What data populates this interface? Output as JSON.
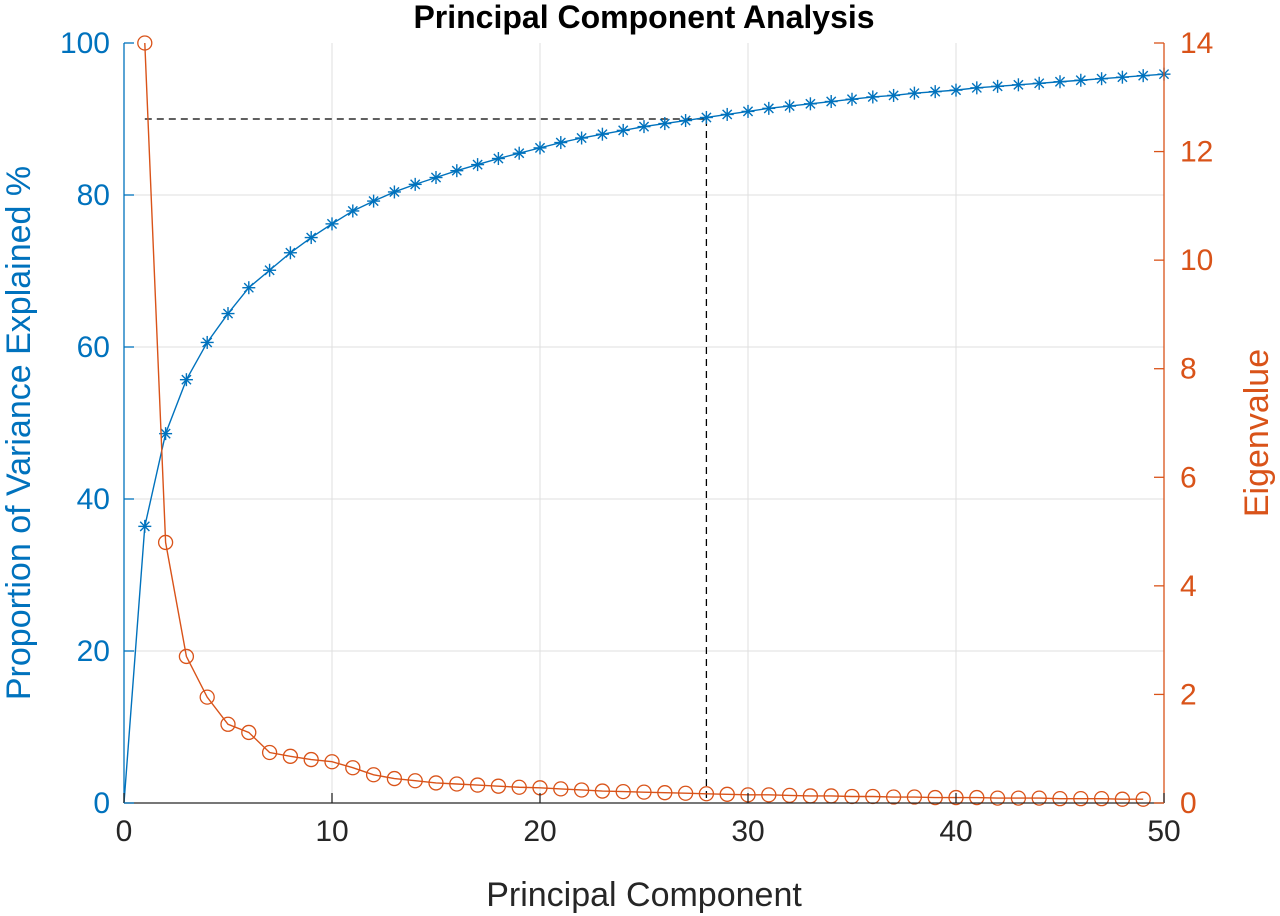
{
  "chart_data": {
    "type": "line",
    "title": "Principal Component Analysis",
    "xlabel": "Principal Component",
    "ylabel_left": "Proportion of Variance Explained %",
    "ylabel_right": "Eigenvalue",
    "xlim": [
      0,
      50
    ],
    "ylim_left": [
      0,
      100
    ],
    "ylim_right": [
      0,
      14
    ],
    "xticks": [
      0,
      10,
      20,
      30,
      40,
      50
    ],
    "yticks_left": [
      0,
      20,
      40,
      60,
      80,
      100
    ],
    "yticks_right": [
      0,
      2,
      4,
      6,
      8,
      10,
      12,
      14
    ],
    "grid": true,
    "colors": {
      "left": "#0072BD",
      "right": "#D95319",
      "reference": "#000000",
      "grid": "#DFDFDF"
    },
    "reference_lines": {
      "threshold_percent": 90,
      "component": 28
    },
    "series": [
      {
        "axis": "left",
        "marker": "asterisk",
        "x": [
          0,
          1,
          2,
          3,
          4,
          5,
          6,
          7,
          8,
          9,
          10,
          11,
          12,
          13,
          14,
          15,
          16,
          17,
          18,
          19,
          20,
          21,
          22,
          23,
          24,
          25,
          26,
          27,
          28,
          29,
          30,
          31,
          32,
          33,
          34,
          35,
          36,
          37,
          38,
          39,
          40,
          41,
          42,
          43,
          44,
          45,
          46,
          47,
          48,
          49,
          50
        ],
        "values": [
          0,
          36.4,
          48.6,
          55.7,
          60.6,
          64.4,
          67.8,
          70.1,
          72.4,
          74.4,
          76.2,
          77.9,
          79.2,
          80.4,
          81.4,
          82.3,
          83.2,
          84.0,
          84.8,
          85.5,
          86.2,
          86.9,
          87.5,
          88.0,
          88.5,
          89.0,
          89.4,
          89.8,
          90.2,
          90.6,
          91.0,
          91.4,
          91.7,
          92.0,
          92.3,
          92.6,
          92.9,
          93.1,
          93.4,
          93.6,
          93.8,
          94.1,
          94.3,
          94.5,
          94.7,
          94.9,
          95.1,
          95.3,
          95.5,
          95.7,
          95.9
        ]
      },
      {
        "axis": "right",
        "marker": "circle",
        "x": [
          1,
          2,
          3,
          4,
          5,
          6,
          7,
          8,
          9,
          10,
          11,
          12,
          13,
          14,
          15,
          16,
          17,
          18,
          19,
          20,
          21,
          22,
          23,
          24,
          25,
          26,
          27,
          28,
          29,
          30,
          31,
          32,
          33,
          34,
          35,
          36,
          37,
          38,
          39,
          40,
          41,
          42,
          43,
          44,
          45,
          46,
          47,
          48,
          49
        ],
        "values": [
          14.0,
          4.8,
          2.7,
          1.95,
          1.45,
          1.3,
          0.93,
          0.86,
          0.8,
          0.76,
          0.65,
          0.52,
          0.45,
          0.41,
          0.37,
          0.35,
          0.33,
          0.31,
          0.29,
          0.28,
          0.26,
          0.24,
          0.22,
          0.21,
          0.2,
          0.19,
          0.18,
          0.17,
          0.16,
          0.15,
          0.15,
          0.14,
          0.13,
          0.13,
          0.12,
          0.12,
          0.11,
          0.11,
          0.1,
          0.1,
          0.1,
          0.09,
          0.09,
          0.09,
          0.08,
          0.08,
          0.08,
          0.07,
          0.07
        ]
      }
    ]
  }
}
